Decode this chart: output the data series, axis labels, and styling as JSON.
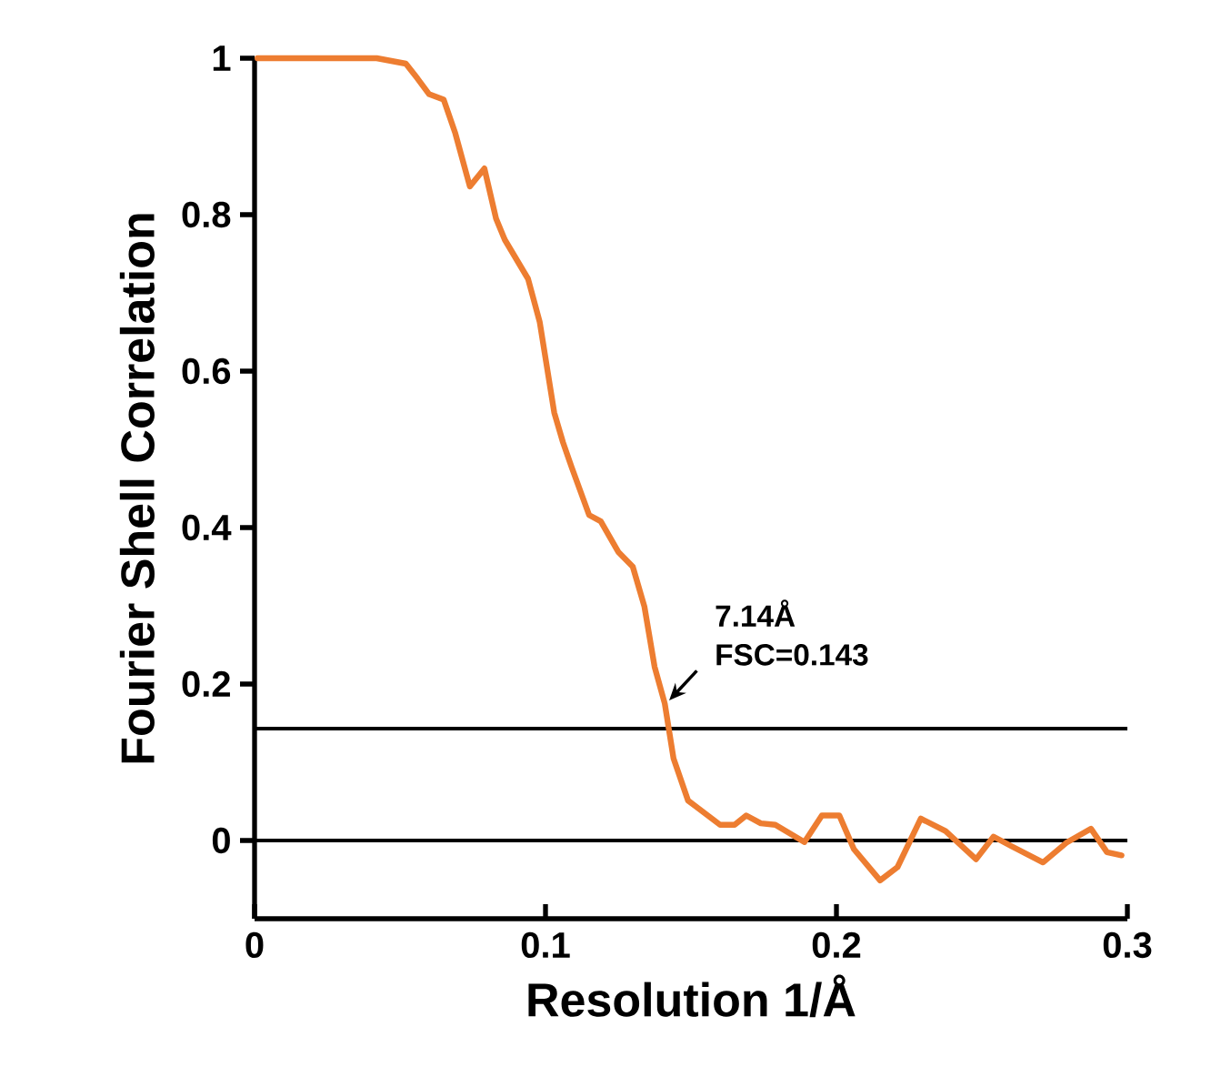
{
  "chart_data": {
    "type": "line",
    "xlabel": "Resolution 1/Å",
    "ylabel": "Fourier Shell Correlation",
    "xlim": [
      0,
      0.3
    ],
    "ylim": [
      -0.1,
      1
    ],
    "xticks": [
      0,
      0.1,
      0.2,
      0.3
    ],
    "yticks": [
      0,
      0.2,
      0.4,
      0.6,
      0.8,
      1
    ],
    "marker": "none",
    "line_style": "solid",
    "series": [
      {
        "color": "#ed7d31",
        "x": [
          0.001,
          0.042,
          0.052,
          0.056,
          0.06,
          0.065,
          0.069,
          0.074,
          0.079,
          0.083,
          0.086,
          0.094,
          0.098,
          0.103,
          0.106,
          0.109,
          0.115,
          0.119,
          0.125,
          0.13,
          0.134,
          0.1375,
          0.141,
          0.144,
          0.149,
          0.16,
          0.165,
          0.169,
          0.174,
          0.179,
          0.189,
          0.195,
          0.201,
          0.206,
          0.215,
          0.221,
          0.229,
          0.2375,
          0.248,
          0.254,
          0.26,
          0.271,
          0.279,
          0.2875,
          0.293,
          0.298
        ],
        "values": [
          1.0,
          1.0,
          0.993,
          0.974,
          0.954,
          0.947,
          0.904,
          0.836,
          0.859,
          0.795,
          0.768,
          0.718,
          0.663,
          0.547,
          0.509,
          0.477,
          0.416,
          0.408,
          0.369,
          0.35,
          0.299,
          0.222,
          0.175,
          0.105,
          0.051,
          0.02,
          0.02,
          0.032,
          0.022,
          0.02,
          -0.002,
          0.032,
          0.032,
          -0.011,
          -0.051,
          -0.034,
          0.028,
          0.012,
          -0.024,
          0.005,
          -0.007,
          -0.028,
          -0.003,
          0.015,
          -0.015,
          -0.019
        ]
      }
    ],
    "ref_lines": [
      {
        "axis": "y",
        "value": 0.143,
        "color": "#000000"
      },
      {
        "axis": "y",
        "value": 0,
        "color": "#000000"
      }
    ],
    "annotations": [
      {
        "text": "7.14Å FSC=0.143",
        "x": 0.141,
        "y": 0.175
      }
    ]
  }
}
